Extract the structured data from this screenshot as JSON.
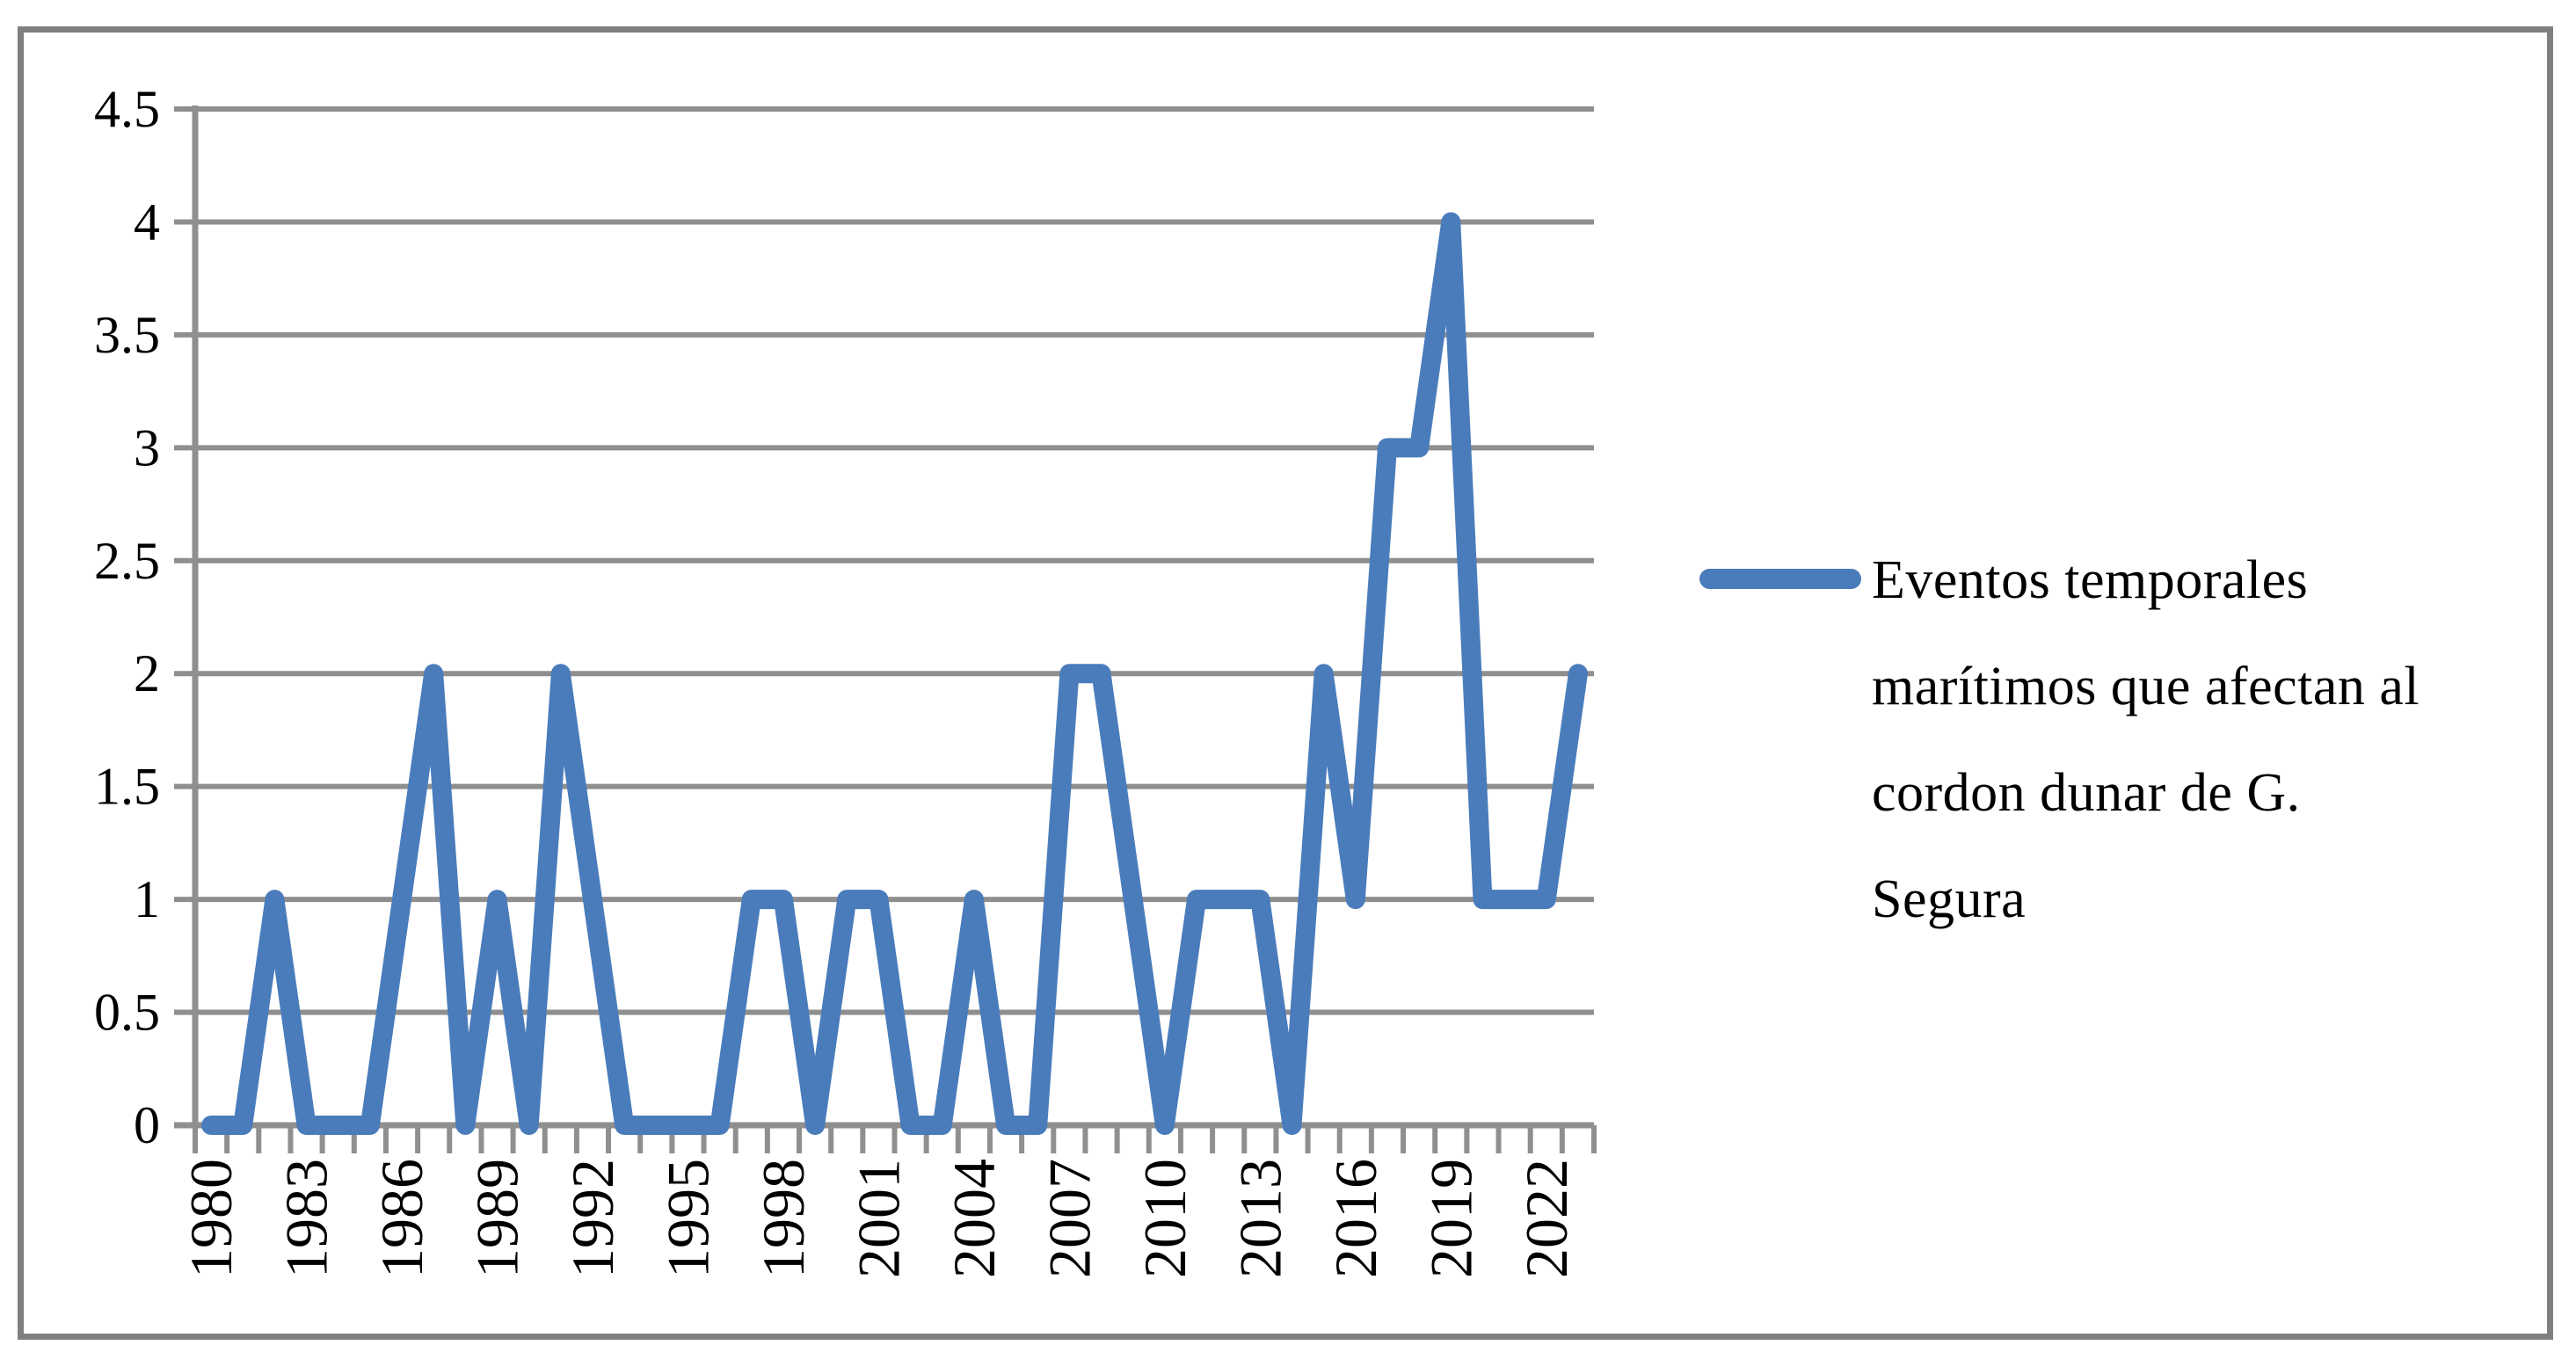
{
  "window": {
    "background": "#ffffff",
    "frame_border_color": "#7f7f7f"
  },
  "chart_data": {
    "type": "line",
    "title": "",
    "xlabel": "",
    "ylabel": "",
    "x": [
      1980,
      1981,
      1982,
      1983,
      1984,
      1985,
      1986,
      1987,
      1988,
      1989,
      1990,
      1991,
      1992,
      1993,
      1994,
      1995,
      1996,
      1997,
      1998,
      1999,
      2000,
      2001,
      2002,
      2003,
      2004,
      2005,
      2006,
      2007,
      2008,
      2009,
      2010,
      2011,
      2012,
      2013,
      2014,
      2015,
      2016,
      2017,
      2018,
      2019,
      2020,
      2021,
      2022,
      2023
    ],
    "series": [
      {
        "name": "Eventos temporales marítimos que afectan al cordon dunar de G. Segura",
        "values": [
          0,
          0,
          1,
          0,
          0,
          0,
          1,
          2,
          0,
          1,
          0,
          2,
          1,
          0,
          0,
          0,
          0,
          1,
          1,
          0,
          1,
          1,
          0,
          0,
          1,
          0,
          0,
          2,
          2,
          1,
          0,
          1,
          1,
          1,
          0,
          2,
          1,
          3,
          3,
          4,
          1,
          1,
          1,
          2
        ],
        "color": "#4A7CBB"
      }
    ],
    "ylim": [
      0,
      4.5
    ],
    "y_tick_step": 0.5,
    "y_tick_labels": [
      "0",
      "0.5",
      "1",
      "1.5",
      "2",
      "2.5",
      "3",
      "3.5",
      "4",
      "4.5"
    ],
    "x_label_every": 3,
    "x_tick_labels": [
      "1980",
      "1983",
      "1986",
      "1989",
      "1992",
      "1995",
      "1998",
      "2001",
      "2004",
      "2007",
      "2010",
      "2013",
      "2016",
      "2019",
      "2022"
    ],
    "grid": "horizontal",
    "gridline_color": "#8f8f8f",
    "axis_color": "#8f8f8f",
    "text_color": "#000000",
    "legend_position": "right"
  },
  "legend": {
    "label": "Eventos temporales marítimos que afectan al cordon dunar de G. Segura",
    "lines": [
      "Eventos temporales",
      "marítimos que afectan al",
      "cordon dunar de G.",
      "Segura"
    ],
    "swatch_color": "#4A7CBB"
  }
}
